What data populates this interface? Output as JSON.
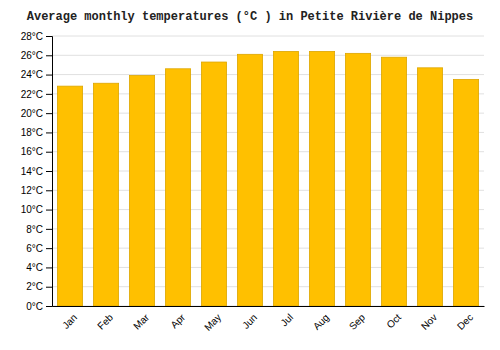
{
  "chart_data": {
    "type": "bar",
    "title": "Average monthly temperatures (°C ) in Petite Rivière de Nippes",
    "categories": [
      "Jan",
      "Feb",
      "Mar",
      "Apr",
      "May",
      "Jun",
      "Jul",
      "Aug",
      "Sep",
      "Oct",
      "Nov",
      "Dec"
    ],
    "values": [
      22.8,
      23.1,
      23.9,
      24.6,
      25.3,
      26.1,
      26.4,
      26.4,
      26.2,
      25.8,
      24.7,
      23.5
    ],
    "color": "#FFC000",
    "ylim": [
      0,
      28
    ],
    "yticks": [
      {
        "value": 0,
        "label": "0°C"
      },
      {
        "value": 2,
        "label": "2°C"
      },
      {
        "value": 4,
        "label": "4°C"
      },
      {
        "value": 6,
        "label": "6°C"
      },
      {
        "value": 8,
        "label": "8°C"
      },
      {
        "value": 10,
        "label": "10°C"
      },
      {
        "value": 12,
        "label": "12°C"
      },
      {
        "value": 14,
        "label": "14°C"
      },
      {
        "value": 16,
        "label": "16°C"
      },
      {
        "value": 18,
        "label": "18°C"
      },
      {
        "value": 20,
        "label": "20°C"
      },
      {
        "value": 22,
        "label": "22°C"
      },
      {
        "value": 24,
        "label": "24°C"
      },
      {
        "value": 26,
        "label": "26°C"
      },
      {
        "value": 28,
        "label": "28°C"
      }
    ],
    "grid": true
  }
}
